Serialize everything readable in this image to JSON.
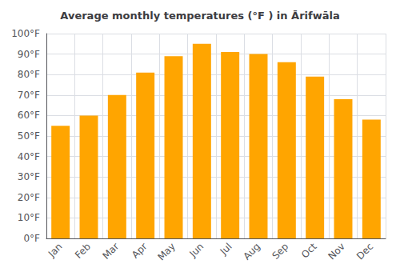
{
  "chart_data": {
    "type": "bar",
    "title": "Average monthly temperatures (°F ) in Ārifwāla",
    "categories": [
      "Jan",
      "Feb",
      "Mar",
      "Apr",
      "May",
      "Jun",
      "Jul",
      "Aug",
      "Sep",
      "Oct",
      "Nov",
      "Dec"
    ],
    "values": [
      55,
      60,
      70,
      81,
      89,
      95,
      91,
      90,
      86,
      79,
      68,
      58
    ],
    "color": "#FFA500",
    "ylim": [
      0,
      100
    ],
    "yticks": [
      {
        "value": 0,
        "label": "0°F"
      },
      {
        "value": 10,
        "label": "10°F"
      },
      {
        "value": 20,
        "label": "20°F"
      },
      {
        "value": 30,
        "label": "30°F"
      },
      {
        "value": 40,
        "label": "40°F"
      },
      {
        "value": 50,
        "label": "50°F"
      },
      {
        "value": 60,
        "label": "60°F"
      },
      {
        "value": 70,
        "label": "70°F"
      },
      {
        "value": 80,
        "label": "80°F"
      },
      {
        "value": 90,
        "label": "90°F"
      },
      {
        "value": 100,
        "label": "100°F"
      }
    ],
    "grid": true
  }
}
